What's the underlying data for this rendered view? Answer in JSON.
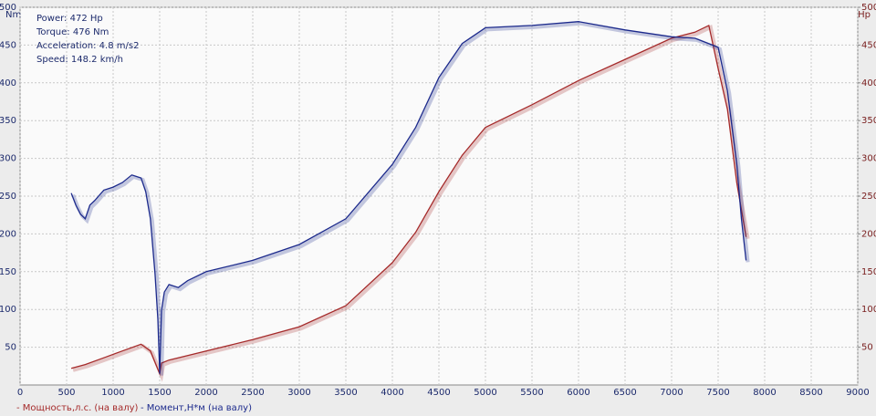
{
  "chart_data": {
    "type": "line",
    "y_label": "Nm",
    "y2_label": "Hp",
    "annotations": [
      "Power: 472 Hp",
      "Torque: 476 Nm",
      "Acceleration: 4.8 m/s2",
      "Speed: 148.2 km/h"
    ],
    "xlim": [
      0,
      9000
    ],
    "xticks": [
      0,
      500,
      1000,
      1500,
      2000,
      2500,
      3000,
      3500,
      4000,
      4500,
      5000,
      5500,
      6000,
      6500,
      7000,
      7500,
      8000,
      8500,
      9000
    ],
    "ylim": [
      0,
      500
    ],
    "yticks": [
      50,
      100,
      150,
      200,
      250,
      300,
      350,
      400,
      450,
      500
    ],
    "y2lim": [
      0,
      500
    ],
    "y2ticks": [
      50,
      100,
      150,
      200,
      250,
      300,
      350,
      400,
      450,
      500
    ],
    "grid": true,
    "series": [
      {
        "name": "- Мощность,л.с. (на валу)",
        "color": "#a52a2a",
        "axis": "y2",
        "x": [
          550,
          700,
          900,
          1100,
          1300,
          1400,
          1500,
          1520,
          1600,
          2000,
          2500,
          3000,
          3500,
          4000,
          4250,
          4500,
          4750,
          5000,
          5500,
          6000,
          6500,
          7000,
          7250,
          7400,
          7500,
          7600,
          7700,
          7800
        ],
        "values": [
          22,
          27,
          36,
          45,
          54,
          45,
          15,
          29,
          33,
          45,
          60,
          77,
          105,
          162,
          202,
          256,
          304,
          341,
          371,
          403,
          431,
          459,
          467,
          476,
          419,
          365,
          268,
          196
        ]
      },
      {
        "name": "- Момент,Н*м (на валу)",
        "color": "#1c2a8c",
        "x": [
          550,
          600,
          650,
          700,
          750,
          800,
          900,
          1000,
          1100,
          1200,
          1300,
          1350,
          1400,
          1450,
          1480,
          1500,
          1520,
          1550,
          1600,
          1700,
          1800,
          2000,
          2500,
          3000,
          3500,
          4000,
          4250,
          4500,
          4750,
          5000,
          5500,
          6000,
          6500,
          7000,
          7250,
          7500,
          7600,
          7700,
          7750,
          7800
        ],
        "values": [
          254,
          238,
          226,
          220,
          238,
          244,
          258,
          262,
          268,
          278,
          274,
          256,
          220,
          147,
          87,
          15,
          99,
          123,
          133,
          129,
          138,
          150,
          165,
          186,
          220,
          292,
          341,
          407,
          452,
          473,
          476,
          481,
          470,
          461,
          459,
          447,
          389,
          292,
          220,
          165
        ]
      }
    ]
  }
}
